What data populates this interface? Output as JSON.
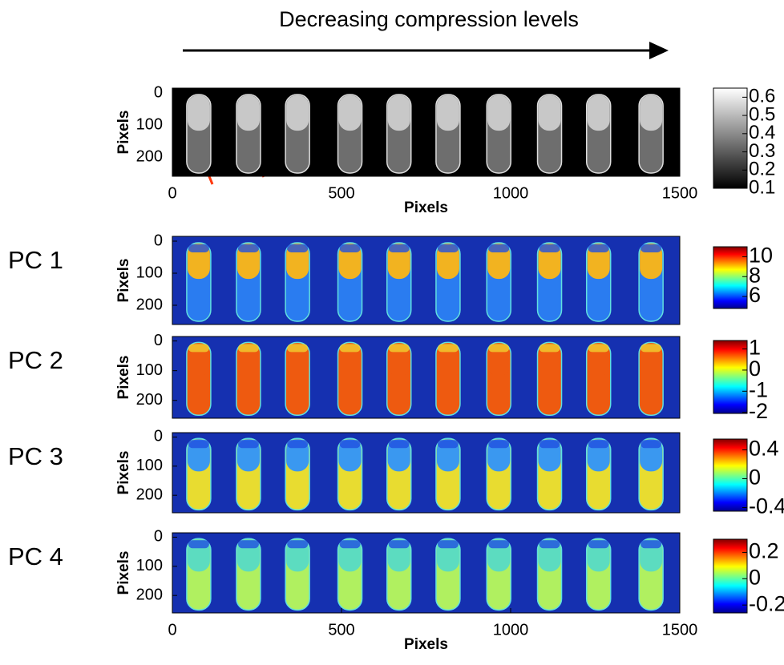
{
  "header": {
    "title": "Decreasing compression levels"
  },
  "panels": [
    {
      "ylabel": "Pixels",
      "xlabel": "Pixels",
      "xlim": [
        0,
        1500
      ],
      "ylim": [
        -15,
        260
      ],
      "xticks": [
        0,
        500,
        1000,
        1500
      ],
      "yticks": [
        0,
        100,
        200
      ],
      "colormap": "gray",
      "background": "#000000",
      "fill": [
        "#c8c8c8",
        "#6e6e6e"
      ],
      "colorbar": {
        "lim": [
          0.1,
          0.65
        ],
        "ticks": [
          0.6,
          0.5,
          0.4,
          0.3,
          0.2,
          0.1
        ]
      }
    },
    {
      "label": "PC 1",
      "ylabel": "Pixels",
      "ylim": [
        -15,
        260
      ],
      "yticks": [
        0,
        100,
        200
      ],
      "colormap": "jet",
      "background": "#1530b0",
      "fill": [
        "#f2b320",
        "#2a7cf0"
      ],
      "colorbar": {
        "lim": [
          4.8,
          11
        ],
        "ticks": [
          10,
          8,
          6
        ]
      }
    },
    {
      "label": "PC 2",
      "ylabel": "Pixels",
      "ylim": [
        -15,
        260
      ],
      "yticks": [
        0,
        100,
        200
      ],
      "colormap": "jet",
      "background": "#1530b0",
      "fill": [
        "#ee5a10",
        "#ee5a10"
      ],
      "colorbar": {
        "lim": [
          -2.05,
          1.4
        ],
        "ticks": [
          1,
          0,
          -1,
          -2
        ]
      }
    },
    {
      "label": "PC 3",
      "ylabel": "Pixels",
      "ylim": [
        -15,
        260
      ],
      "yticks": [
        0,
        100,
        200
      ],
      "colormap": "jet",
      "background": "#1530b0",
      "fill": [
        "#3a98f0",
        "#e8dc30"
      ],
      "colorbar": {
        "lim": [
          -0.45,
          0.55
        ],
        "ticks": [
          0.4,
          0,
          -0.4
        ]
      }
    },
    {
      "label": "PC 4",
      "ylabel": "Pixels",
      "xlabel": "Pixels",
      "xlim": [
        0,
        1500
      ],
      "ylim": [
        -15,
        260
      ],
      "xticks": [
        0,
        500,
        1000,
        1500
      ],
      "yticks": [
        0,
        100,
        200
      ],
      "colormap": "jet",
      "background": "#1530b0",
      "fill": [
        "#5cdcc0",
        "#b0f060"
      ],
      "colorbar": {
        "lim": [
          -0.26,
          0.3
        ],
        "ticks": [
          0.2,
          0,
          -0.2
        ]
      }
    }
  ]
}
